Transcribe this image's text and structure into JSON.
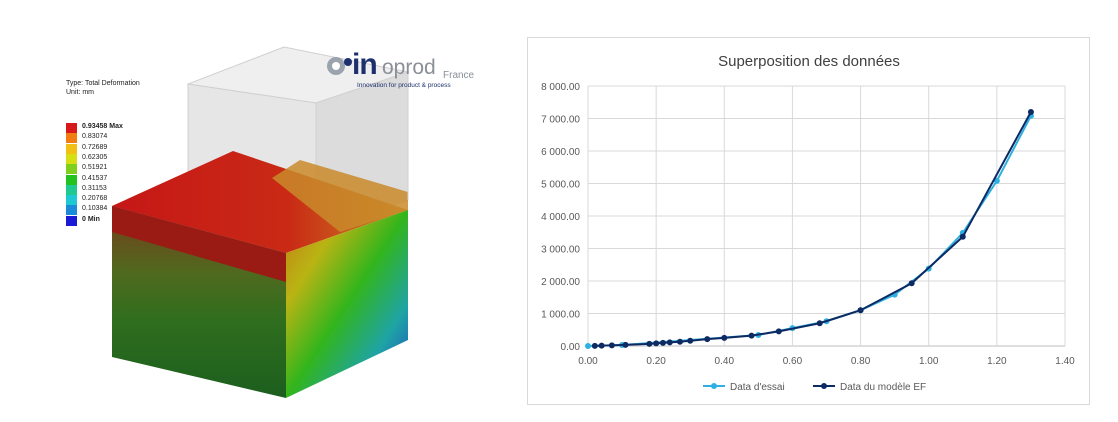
{
  "fea": {
    "result_type": "Type: Total Deformation",
    "unit": "Unit: mm",
    "legend": [
      {
        "label": "0.93458 Max",
        "color": "#d7191c"
      },
      {
        "label": "0.83074",
        "color": "#f07c12"
      },
      {
        "label": "0.72689",
        "color": "#f2c012"
      },
      {
        "label": "0.62305",
        "color": "#d6de14"
      },
      {
        "label": "0.51921",
        "color": "#7fcf1f"
      },
      {
        "label": "0.41537",
        "color": "#23c21f"
      },
      {
        "label": "0.31153",
        "color": "#1fc98f"
      },
      {
        "label": "0.20768",
        "color": "#1fc9d4"
      },
      {
        "label": "0.10384",
        "color": "#1a8ad9"
      },
      {
        "label": "0 Min",
        "color": "#1a1ad6"
      }
    ]
  },
  "logo": {
    "letters_in": "in",
    "letters_oprod": "oprod",
    "suffix": "France",
    "tagline": "Innovation for product & process"
  },
  "chart_data": {
    "type": "line",
    "title": "Superposition des données",
    "xlabel": "",
    "ylabel": "",
    "xlim": [
      0,
      1.4
    ],
    "ylim": [
      0,
      8000
    ],
    "xticks": [
      "0.00",
      "0.20",
      "0.40",
      "0.60",
      "0.80",
      "1.00",
      "1.20",
      "1.40"
    ],
    "yticks": [
      "0.00",
      "1 000.00",
      "2 000.00",
      "3 000.00",
      "4 000.00",
      "5 000.00",
      "6 000.00",
      "7 000.00",
      "8 000.00"
    ],
    "grid": true,
    "legend_position": "bottom",
    "series": [
      {
        "name": "Data d'essai",
        "color": "#2eb0e0",
        "x": [
          0.0,
          0.1,
          0.5,
          0.6,
          0.7,
          0.8,
          0.9,
          1.0,
          1.1,
          1.2,
          1.3
        ],
        "y": [
          0,
          30,
          340,
          550,
          760,
          1100,
          1580,
          2380,
          3480,
          5080,
          7080
        ]
      },
      {
        "name": "Data du modèle EF",
        "color": "#0d2a63",
        "x": [
          0.02,
          0.04,
          0.07,
          0.11,
          0.18,
          0.2,
          0.22,
          0.24,
          0.27,
          0.3,
          0.35,
          0.4,
          0.48,
          0.56,
          0.68,
          0.8,
          0.95,
          1.1,
          1.3
        ],
        "y": [
          5,
          10,
          20,
          35,
          65,
          80,
          95,
          110,
          130,
          160,
          210,
          250,
          320,
          450,
          700,
          1100,
          1930,
          3360,
          7200
        ]
      }
    ]
  }
}
